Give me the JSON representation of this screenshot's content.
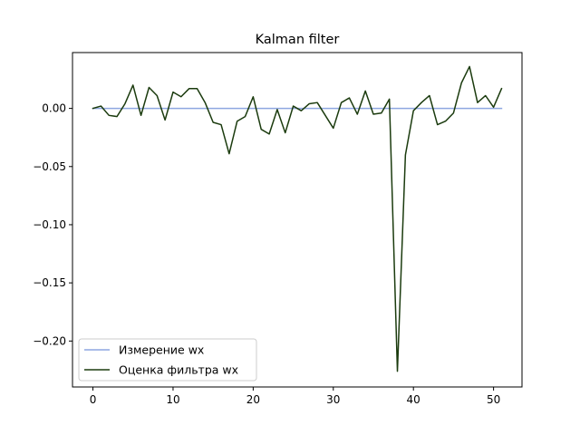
{
  "chart_data": {
    "type": "line",
    "title": "Kalman filter",
    "xlabel": "",
    "ylabel": "",
    "xlim": [
      -2.55,
      53.55
    ],
    "ylim": [
      -0.2395,
      0.048
    ],
    "xticks": [
      0,
      10,
      20,
      30,
      40,
      50
    ],
    "yticks": [
      0.0,
      -0.05,
      -0.1,
      -0.15,
      -0.2
    ],
    "ytick_labels": [
      "0.00",
      "−0.05",
      "−0.10",
      "−0.15",
      "−0.20"
    ],
    "legend_position": "lower-left",
    "grid": false,
    "series": [
      {
        "name": "Измерение wx",
        "color": "#8ea6e0",
        "x": [
          0,
          51
        ],
        "y": [
          0,
          0
        ]
      },
      {
        "name": "Оценка фильтра wx",
        "color": "#1b3b0e",
        "x": [
          0,
          1,
          2,
          3,
          4,
          5,
          6,
          7,
          8,
          9,
          10,
          11,
          12,
          13,
          14,
          15,
          16,
          17,
          18,
          19,
          20,
          21,
          22,
          23,
          24,
          25,
          26,
          27,
          28,
          29,
          30,
          31,
          32,
          33,
          34,
          35,
          36,
          37,
          38,
          39,
          40,
          41,
          42,
          43,
          44,
          45,
          46,
          47,
          48,
          49,
          50,
          51
        ],
        "y": [
          0.0,
          0.002,
          -0.006,
          -0.007,
          0.004,
          0.02,
          -0.006,
          0.018,
          0.011,
          -0.01,
          0.014,
          0.01,
          0.017,
          0.017,
          0.005,
          -0.012,
          -0.014,
          -0.039,
          -0.011,
          -0.007,
          0.01,
          -0.018,
          -0.022,
          -0.001,
          -0.021,
          0.002,
          -0.002,
          0.004,
          0.005,
          -0.006,
          -0.017,
          0.005,
          0.009,
          -0.005,
          0.015,
          -0.005,
          -0.004,
          0.008,
          -0.226,
          -0.04,
          -0.002,
          0.005,
          0.011,
          -0.014,
          -0.011,
          -0.004,
          0.022,
          0.036,
          0.005,
          0.011,
          0.001,
          0.017
        ]
      }
    ]
  }
}
